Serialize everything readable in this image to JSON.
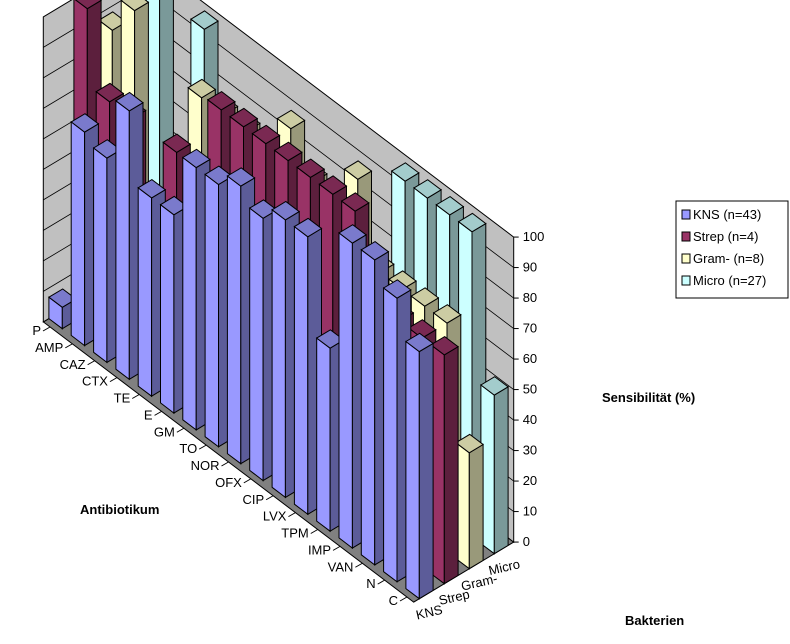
{
  "chart_data": {
    "type": "bar",
    "subtype": "3d-column",
    "title": "",
    "xlabel": "Antibiotikum",
    "ylabel": "Sensibilität (%)",
    "zlabel": "Bakterien",
    "categories": [
      "P",
      "AMP",
      "CAZ",
      "CTX",
      "TE",
      "E",
      "GM",
      "TO",
      "NOR",
      "OFX",
      "CIP",
      "LVX",
      "TPM",
      "IMP",
      "VAN",
      "N",
      "C"
    ],
    "depth_labels": [
      "KNS",
      "Strep",
      "Gram-",
      "Micro"
    ],
    "ylim": [
      0,
      100
    ],
    "yticks": [
      0,
      10,
      20,
      30,
      40,
      50,
      60,
      70,
      80,
      90,
      100
    ],
    "legend_position": "right",
    "grid": true,
    "series": [
      {
        "name": "KNS (n=43)",
        "color": "#9999ff",
        "values": [
          7,
          70,
          67,
          88,
          65,
          65,
          86,
          86,
          91,
          86,
          91,
          91,
          60,
          100,
          100,
          93,
          81
        ]
      },
      {
        "name": "Strep (n=4)",
        "color": "#993366",
        "values": [
          100,
          75,
          75,
          0,
          75,
          25,
          100,
          100,
          100,
          100,
          100,
          100,
          100,
          75,
          75,
          75,
          75
        ]
      },
      {
        "name": "Gram- (n=8)",
        "color": "#ffffcc",
        "values": [
          88,
          100,
          0,
          50,
          88,
          88,
          88,
          88,
          100,
          88,
          88,
          100,
          75,
          75,
          75,
          75,
          38
        ]
      },
      {
        "name": "Micro (n=27)",
        "color": "#ccffff",
        "values": [
          0,
          100,
          0,
          100,
          0,
          0,
          0,
          0,
          0,
          0,
          0,
          0,
          100,
          100,
          100,
          100,
          52
        ]
      }
    ]
  }
}
